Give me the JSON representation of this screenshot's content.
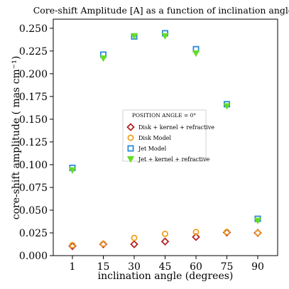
{
  "chart_data": {
    "type": "scatter",
    "title": "Core-shift Amplitude [A] as a function of inclination angle",
    "xlabel": "inclination angle (degrees)",
    "ylabel": "core-shift amplitude ( mas cm⁻¹)",
    "categories": [
      "1",
      "15",
      "30",
      "45",
      "60",
      "75",
      "90"
    ],
    "y_ticks": [
      "0.000",
      "0.025",
      "0.050",
      "0.075",
      "0.100",
      "0.125",
      "0.150",
      "0.175",
      "0.200",
      "0.225",
      "0.250"
    ],
    "ylim": [
      0,
      0.26
    ],
    "grid": false,
    "legend": {
      "title": "POSITION ANGLE = 0°",
      "placement": "center-right"
    },
    "series": [
      {
        "name": "Disk + kernel + refractive",
        "marker": "diamond-open",
        "color": "#b22222",
        "values": [
          0.0105,
          0.0125,
          0.0125,
          0.0155,
          0.0205,
          0.0255,
          0.025
        ]
      },
      {
        "name": "Disk Model",
        "marker": "circle-open",
        "color": "#f0a020",
        "values": [
          0.0115,
          0.013,
          0.0195,
          0.024,
          0.026,
          0.026,
          0.025
        ]
      },
      {
        "name": "Jet Model",
        "marker": "square-open",
        "color": "#2a8ad8",
        "values": [
          0.0965,
          0.221,
          0.241,
          0.2445,
          0.227,
          0.1665,
          0.0405
        ]
      },
      {
        "name": "Jet + kernel + refractive",
        "marker": "triangle-down-filled",
        "color": "#66dd22",
        "values": [
          0.094,
          0.217,
          0.2415,
          0.2415,
          0.2225,
          0.1645,
          0.0385
        ]
      }
    ]
  }
}
